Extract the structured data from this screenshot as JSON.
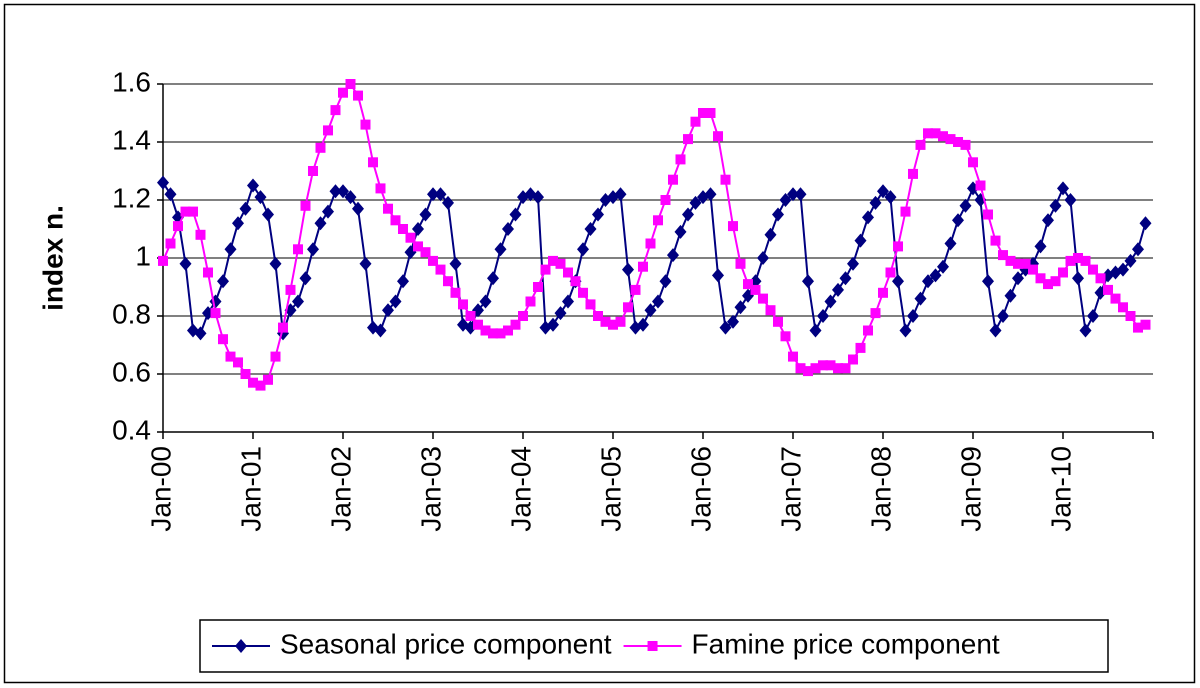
{
  "chart_data": {
    "type": "line",
    "ylabel": "index n.",
    "categories": [
      "Jan-00",
      null,
      null,
      null,
      null,
      null,
      null,
      null,
      null,
      null,
      null,
      null,
      "Jan-01",
      null,
      null,
      null,
      null,
      null,
      null,
      null,
      null,
      null,
      null,
      null,
      "Jan-02",
      null,
      null,
      null,
      null,
      null,
      null,
      null,
      null,
      null,
      null,
      null,
      "Jan-03",
      null,
      null,
      null,
      null,
      null,
      null,
      null,
      null,
      null,
      null,
      null,
      "Jan-04",
      null,
      null,
      null,
      null,
      null,
      null,
      null,
      null,
      null,
      null,
      null,
      "Jan-05",
      null,
      null,
      null,
      null,
      null,
      null,
      null,
      null,
      null,
      null,
      null,
      "Jan-06",
      null,
      null,
      null,
      null,
      null,
      null,
      null,
      null,
      null,
      null,
      null,
      "Jan-07",
      null,
      null,
      null,
      null,
      null,
      null,
      null,
      null,
      null,
      null,
      null,
      "Jan-08",
      null,
      null,
      null,
      null,
      null,
      null,
      null,
      null,
      null,
      null,
      null,
      "Jan-09",
      null,
      null,
      null,
      null,
      null,
      null,
      null,
      null,
      null,
      null,
      null,
      "Jan-10",
      null,
      null,
      null,
      null,
      null,
      null,
      null,
      null,
      null,
      null,
      null
    ],
    "series": [
      {
        "name": "Seasonal price component",
        "color": "#000080",
        "marker": "diamond",
        "values": [
          1.26,
          1.22,
          1.14,
          0.98,
          0.75,
          0.74,
          0.81,
          0.85,
          0.92,
          1.03,
          1.12,
          1.17,
          1.25,
          1.21,
          1.15,
          0.98,
          0.74,
          0.82,
          0.85,
          0.93,
          1.03,
          1.12,
          1.16,
          1.23,
          1.23,
          1.21,
          1.17,
          0.98,
          0.76,
          0.75,
          0.82,
          0.85,
          0.92,
          1.02,
          1.1,
          1.15,
          1.22,
          1.22,
          1.19,
          0.98,
          0.77,
          0.76,
          0.82,
          0.85,
          0.93,
          1.03,
          1.1,
          1.15,
          1.21,
          1.22,
          1.21,
          0.76,
          0.77,
          0.81,
          0.85,
          0.92,
          1.03,
          1.1,
          1.15,
          1.2,
          1.21,
          1.22,
          0.96,
          0.76,
          0.77,
          0.82,
          0.85,
          0.92,
          1.01,
          1.09,
          1.15,
          1.19,
          1.21,
          1.22,
          0.94,
          0.76,
          0.78,
          0.83,
          0.87,
          0.92,
          1.0,
          1.08,
          1.15,
          1.2,
          1.22,
          1.22,
          0.92,
          0.75,
          0.8,
          0.85,
          0.89,
          0.93,
          0.98,
          1.06,
          1.14,
          1.19,
          1.23,
          1.21,
          0.92,
          0.75,
          0.8,
          0.86,
          0.92,
          0.94,
          0.97,
          1.05,
          1.13,
          1.18,
          1.24,
          1.2,
          0.92,
          0.75,
          0.8,
          0.87,
          0.93,
          0.96,
          0.98,
          1.04,
          1.13,
          1.18,
          1.24,
          1.2,
          0.93,
          0.75,
          0.8,
          0.88,
          0.94,
          0.95,
          0.96,
          0.99,
          1.03,
          1.12
        ]
      },
      {
        "name": "Famine price component",
        "color": "#ff00ff",
        "marker": "square",
        "values": [
          0.99,
          1.05,
          1.11,
          1.16,
          1.16,
          1.08,
          0.95,
          0.81,
          0.72,
          0.66,
          0.64,
          0.6,
          0.57,
          0.56,
          0.58,
          0.66,
          0.76,
          0.89,
          1.03,
          1.18,
          1.3,
          1.38,
          1.44,
          1.51,
          1.57,
          1.6,
          1.56,
          1.46,
          1.33,
          1.24,
          1.17,
          1.13,
          1.1,
          1.07,
          1.04,
          1.02,
          0.99,
          0.96,
          0.92,
          0.88,
          0.84,
          0.8,
          0.77,
          0.75,
          0.74,
          0.74,
          0.75,
          0.77,
          0.8,
          0.85,
          0.9,
          0.96,
          0.99,
          0.98,
          0.95,
          0.92,
          0.88,
          0.84,
          0.8,
          0.78,
          0.77,
          0.78,
          0.83,
          0.89,
          0.97,
          1.05,
          1.13,
          1.2,
          1.27,
          1.34,
          1.41,
          1.47,
          1.5,
          1.5,
          1.42,
          1.27,
          1.11,
          0.98,
          0.91,
          0.89,
          0.86,
          0.82,
          0.78,
          0.73,
          0.66,
          0.62,
          0.61,
          0.62,
          0.63,
          0.63,
          0.62,
          0.62,
          0.65,
          0.69,
          0.75,
          0.81,
          0.88,
          0.95,
          1.04,
          1.16,
          1.29,
          1.39,
          1.43,
          1.43,
          1.42,
          1.41,
          1.4,
          1.39,
          1.33,
          1.25,
          1.15,
          1.06,
          1.01,
          0.99,
          0.98,
          0.98,
          0.96,
          0.93,
          0.91,
          0.92,
          0.95,
          0.99,
          1.0,
          0.99,
          0.96,
          0.93,
          0.89,
          0.86,
          0.83,
          0.8,
          0.76,
          0.77
        ]
      }
    ],
    "ylim": [
      0.4,
      1.6
    ],
    "yticks": [
      0.4,
      0.6,
      0.8,
      1,
      1.2,
      1.4,
      1.6
    ],
    "grid": true,
    "legend": "bottom"
  }
}
